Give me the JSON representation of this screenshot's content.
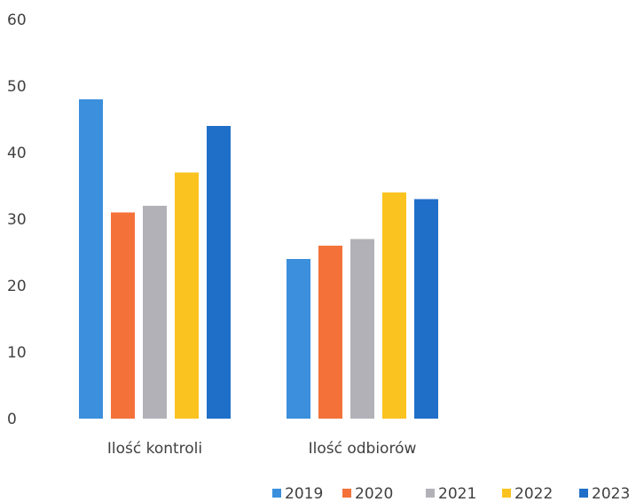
{
  "chart_data": {
    "type": "bar",
    "categories": [
      "Ilość kontroli",
      "Ilość odbiorów"
    ],
    "series": [
      {
        "name": "2019",
        "values": [
          48,
          24
        ],
        "color": "#3b8fdc"
      },
      {
        "name": "2020",
        "values": [
          31,
          26
        ],
        "color": "#f4723a"
      },
      {
        "name": "2021",
        "values": [
          32,
          27
        ],
        "color": "#b3b1b8"
      },
      {
        "name": "2022",
        "values": [
          37,
          34
        ],
        "color": "#fbc320"
      },
      {
        "name": "2023",
        "values": [
          44,
          33
        ],
        "color": "#1f6fc9"
      }
    ],
    "yticks": [
      "0",
      "10",
      "20",
      "30",
      "40",
      "50",
      "60"
    ],
    "ylim": [
      0,
      60
    ],
    "grid": false,
    "legend_position": "bottom-right",
    "title": "",
    "xlabel": "",
    "ylabel": ""
  }
}
